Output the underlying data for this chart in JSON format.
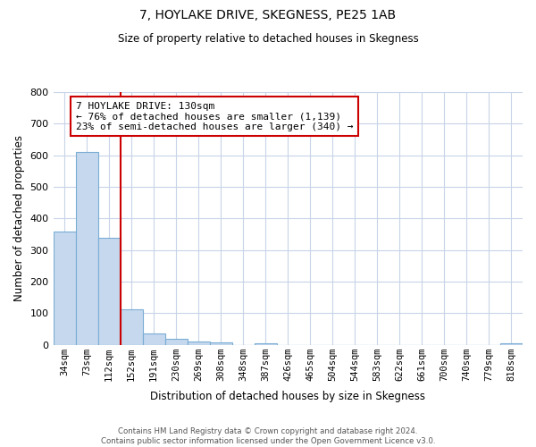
{
  "title1": "7, HOYLAKE DRIVE, SKEGNESS, PE25 1AB",
  "title2": "Size of property relative to detached houses in Skegness",
  "xlabel": "Distribution of detached houses by size in Skegness",
  "ylabel": "Number of detached properties",
  "bar_labels": [
    "34sqm",
    "73sqm",
    "112sqm",
    "152sqm",
    "191sqm",
    "230sqm",
    "269sqm",
    "308sqm",
    "348sqm",
    "387sqm",
    "426sqm",
    "465sqm",
    "504sqm",
    "544sqm",
    "583sqm",
    "622sqm",
    "661sqm",
    "700sqm",
    "740sqm",
    "779sqm",
    "818sqm"
  ],
  "bar_values": [
    357,
    610,
    340,
    113,
    35,
    20,
    11,
    7,
    0,
    5,
    0,
    0,
    0,
    0,
    0,
    0,
    0,
    0,
    0,
    0,
    5
  ],
  "bar_color": "#c5d8ee",
  "bar_edge_color": "#7aadd4",
  "property_line_x": 2.5,
  "property_line_color": "#cc0000",
  "annotation_line1": "7 HOYLAKE DRIVE: 130sqm",
  "annotation_line2": "← 76% of detached houses are smaller (1,139)",
  "annotation_line3": "23% of semi-detached houses are larger (340) →",
  "annotation_box_color": "#ffffff",
  "annotation_box_edge": "#cc0000",
  "ylim": [
    0,
    800
  ],
  "yticks": [
    0,
    100,
    200,
    300,
    400,
    500,
    600,
    700,
    800
  ],
  "footer1": "Contains HM Land Registry data © Crown copyright and database right 2024.",
  "footer2": "Contains public sector information licensed under the Open Government Licence v3.0.",
  "background_color": "#ffffff",
  "grid_color": "#c8d4e8"
}
